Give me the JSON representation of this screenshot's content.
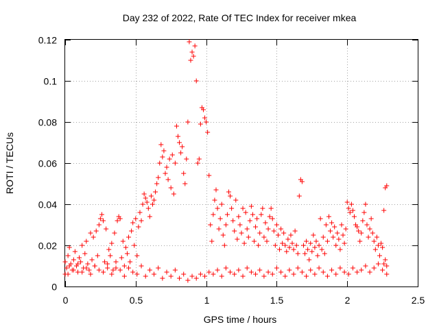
{
  "chart_data": {
    "type": "scatter",
    "title": "Day 232 of 2022, Rate Of TEC Index for receiver mkea",
    "xlabel": "GPS time / hours",
    "ylabel": "ROTI / TECUs",
    "xlim": [
      0,
      2.5
    ],
    "ylim": [
      0,
      0.12
    ],
    "xticks": [
      0,
      0.5,
      1,
      1.5,
      2,
      2.5
    ],
    "xtick_labels": [
      "0",
      "0.5",
      "1",
      "1.5",
      "2",
      "2.5"
    ],
    "yticks": [
      0,
      0.02,
      0.04,
      0.06,
      0.08,
      0.1,
      0.12
    ],
    "ytick_labels": [
      "0",
      "0.02",
      "0.04",
      "0.06",
      "0.08",
      "0.1",
      "0.12"
    ],
    "grid": true,
    "marker": "+",
    "color": "#ff0000",
    "series": [
      {
        "name": "mkea",
        "points": [
          [
            0.0,
            0.012
          ],
          [
            0.01,
            0.009
          ],
          [
            0.02,
            0.015
          ],
          [
            0.02,
            0.006
          ],
          [
            0.03,
            0.019
          ],
          [
            0.04,
            0.011
          ],
          [
            0.05,
            0.008
          ],
          [
            0.06,
            0.013
          ],
          [
            0.07,
            0.017
          ],
          [
            0.08,
            0.01
          ],
          [
            0.09,
            0.007
          ],
          [
            0.1,
            0.014
          ],
          [
            0.11,
            0.012
          ],
          [
            0.12,
            0.02
          ],
          [
            0.13,
            0.009
          ],
          [
            0.14,
            0.016
          ],
          [
            0.15,
            0.022
          ],
          [
            0.16,
            0.011
          ],
          [
            0.17,
            0.008
          ],
          [
            0.18,
            0.026
          ],
          [
            0.19,
            0.013
          ],
          [
            0.2,
            0.024
          ],
          [
            0.21,
            0.01
          ],
          [
            0.22,
            0.027
          ],
          [
            0.23,
            0.015
          ],
          [
            0.24,
            0.03
          ],
          [
            0.25,
            0.033
          ],
          [
            0.26,
            0.035
          ],
          [
            0.27,
            0.032
          ],
          [
            0.28,
            0.012
          ],
          [
            0.29,
            0.028
          ],
          [
            0.3,
            0.009
          ],
          [
            0.31,
            0.018
          ],
          [
            0.32,
            0.015
          ],
          [
            0.33,
            0.021
          ],
          [
            0.34,
            0.008
          ],
          [
            0.35,
            0.026
          ],
          [
            0.36,
            0.012
          ],
          [
            0.37,
            0.032
          ],
          [
            0.38,
            0.034
          ],
          [
            0.39,
            0.033
          ],
          [
            0.4,
            0.014
          ],
          [
            0.41,
            0.022
          ],
          [
            0.42,
            0.01
          ],
          [
            0.43,
            0.019
          ],
          [
            0.44,
            0.016
          ],
          [
            0.45,
            0.024
          ],
          [
            0.46,
            0.012
          ],
          [
            0.47,
            0.027
          ],
          [
            0.48,
            0.031
          ],
          [
            0.49,
            0.02
          ],
          [
            0.5,
            0.033
          ],
          [
            0.51,
            0.015
          ],
          [
            0.52,
            0.029
          ],
          [
            0.53,
            0.036
          ],
          [
            0.54,
            0.032
          ],
          [
            0.55,
            0.04
          ],
          [
            0.56,
            0.045
          ],
          [
            0.57,
            0.043
          ],
          [
            0.58,
            0.041
          ],
          [
            0.59,
            0.038
          ],
          [
            0.6,
            0.034
          ],
          [
            0.61,
            0.044
          ],
          [
            0.62,
            0.04
          ],
          [
            0.63,
            0.042
          ],
          [
            0.64,
            0.046
          ],
          [
            0.65,
            0.05
          ],
          [
            0.66,
            0.053
          ],
          [
            0.67,
            0.06
          ],
          [
            0.68,
            0.069
          ],
          [
            0.69,
            0.063
          ],
          [
            0.7,
            0.066
          ],
          [
            0.71,
            0.055
          ],
          [
            0.72,
            0.058
          ],
          [
            0.73,
            0.052
          ],
          [
            0.74,
            0.062
          ],
          [
            0.75,
            0.048
          ],
          [
            0.76,
            0.064
          ],
          [
            0.77,
            0.045
          ],
          [
            0.78,
            0.06
          ],
          [
            0.79,
            0.078
          ],
          [
            0.8,
            0.073
          ],
          [
            0.81,
            0.07
          ],
          [
            0.82,
            0.065
          ],
          [
            0.83,
            0.068
          ],
          [
            0.84,
            0.055
          ],
          [
            0.85,
            0.05
          ],
          [
            0.86,
            0.062
          ],
          [
            0.87,
            0.08
          ],
          [
            0.88,
            0.119
          ],
          [
            0.89,
            0.11
          ],
          [
            0.9,
            0.114
          ],
          [
            0.91,
            0.112
          ],
          [
            0.92,
            0.117
          ],
          [
            0.93,
            0.1
          ],
          [
            0.94,
            0.06
          ],
          [
            0.95,
            0.062
          ],
          [
            0.96,
            0.079
          ],
          [
            0.97,
            0.087
          ],
          [
            0.98,
            0.086
          ],
          [
            0.99,
            0.082
          ],
          [
            1.0,
            0.08
          ],
          [
            1.01,
            0.075
          ],
          [
            1.02,
            0.054
          ],
          [
            1.03,
            0.03
          ],
          [
            1.04,
            0.022
          ],
          [
            1.05,
            0.035
          ],
          [
            1.06,
            0.042
          ],
          [
            1.07,
            0.047
          ],
          [
            1.08,
            0.038
          ],
          [
            1.09,
            0.028
          ],
          [
            1.1,
            0.033
          ],
          [
            1.11,
            0.04
          ],
          [
            1.12,
            0.025
          ],
          [
            1.13,
            0.02
          ],
          [
            1.14,
            0.03
          ],
          [
            1.15,
            0.035
          ],
          [
            1.16,
            0.046
          ],
          [
            1.17,
            0.044
          ],
          [
            1.18,
            0.038
          ],
          [
            1.19,
            0.032
          ],
          [
            1.2,
            0.027
          ],
          [
            1.21,
            0.042
          ],
          [
            1.22,
            0.023
          ],
          [
            1.23,
            0.034
          ],
          [
            1.24,
            0.03
          ],
          [
            1.25,
            0.026
          ],
          [
            1.26,
            0.038
          ],
          [
            1.27,
            0.021
          ],
          [
            1.28,
            0.036
          ],
          [
            1.29,
            0.028
          ],
          [
            1.3,
            0.024
          ],
          [
            1.31,
            0.032
          ],
          [
            1.32,
            0.039
          ],
          [
            1.33,
            0.035
          ],
          [
            1.34,
            0.022
          ],
          [
            1.35,
            0.029
          ],
          [
            1.36,
            0.033
          ],
          [
            1.37,
            0.02
          ],
          [
            1.38,
            0.026
          ],
          [
            1.39,
            0.035
          ],
          [
            1.4,
            0.038
          ],
          [
            1.41,
            0.024
          ],
          [
            1.42,
            0.031
          ],
          [
            1.43,
            0.022
          ],
          [
            1.44,
            0.028
          ],
          [
            1.45,
            0.034
          ],
          [
            1.46,
            0.038
          ],
          [
            1.47,
            0.033
          ],
          [
            1.48,
            0.027
          ],
          [
            1.49,
            0.02
          ],
          [
            1.5,
            0.03
          ],
          [
            1.51,
            0.025
          ],
          [
            1.52,
            0.018
          ],
          [
            1.53,
            0.028
          ],
          [
            1.54,
            0.021
          ],
          [
            1.55,
            0.026
          ],
          [
            1.56,
            0.02
          ],
          [
            1.57,
            0.017
          ],
          [
            1.58,
            0.023
          ],
          [
            1.59,
            0.019
          ],
          [
            1.6,
            0.025
          ],
          [
            1.61,
            0.021
          ],
          [
            1.62,
            0.018
          ],
          [
            1.63,
            0.027
          ],
          [
            1.64,
            0.02
          ],
          [
            1.65,
            0.016
          ],
          [
            1.66,
            0.044
          ],
          [
            1.67,
            0.052
          ],
          [
            1.68,
            0.051
          ],
          [
            1.69,
            0.02
          ],
          [
            1.7,
            0.016
          ],
          [
            1.71,
            0.022
          ],
          [
            1.72,
            0.018
          ],
          [
            1.73,
            0.013
          ],
          [
            1.74,
            0.021
          ],
          [
            1.75,
            0.017
          ],
          [
            1.76,
            0.025
          ],
          [
            1.77,
            0.019
          ],
          [
            1.78,
            0.022
          ],
          [
            1.79,
            0.015
          ],
          [
            1.8,
            0.02
          ],
          [
            1.81,
            0.033
          ],
          [
            1.82,
            0.018
          ],
          [
            1.83,
            0.024
          ],
          [
            1.84,
            0.016
          ],
          [
            1.85,
            0.03
          ],
          [
            1.86,
            0.022
          ],
          [
            1.87,
            0.034
          ],
          [
            1.88,
            0.027
          ],
          [
            1.89,
            0.031
          ],
          [
            1.9,
            0.024
          ],
          [
            1.91,
            0.029
          ],
          [
            1.92,
            0.02
          ],
          [
            1.93,
            0.026
          ],
          [
            1.94,
            0.023
          ],
          [
            1.95,
            0.018
          ],
          [
            1.96,
            0.03
          ],
          [
            1.97,
            0.025
          ],
          [
            1.98,
            0.021
          ],
          [
            1.99,
            0.028
          ],
          [
            2.0,
            0.041
          ],
          [
            2.01,
            0.038
          ],
          [
            2.02,
            0.036
          ],
          [
            2.03,
            0.04
          ],
          [
            2.04,
            0.037
          ],
          [
            2.05,
            0.034
          ],
          [
            2.06,
            0.03
          ],
          [
            2.07,
            0.029
          ],
          [
            2.08,
            0.027
          ],
          [
            2.09,
            0.022
          ],
          [
            2.1,
            0.026
          ],
          [
            2.11,
            0.032
          ],
          [
            2.12,
            0.036
          ],
          [
            2.13,
            0.04
          ],
          [
            2.14,
            0.03
          ],
          [
            2.15,
            0.024
          ],
          [
            2.16,
            0.028
          ],
          [
            2.17,
            0.033
          ],
          [
            2.18,
            0.026
          ],
          [
            2.19,
            0.022
          ],
          [
            2.2,
            0.018
          ],
          [
            2.21,
            0.024
          ],
          [
            2.22,
            0.02
          ],
          [
            2.23,
            0.015
          ],
          [
            2.24,
            0.021
          ],
          [
            2.25,
            0.019
          ],
          [
            2.26,
            0.037
          ],
          [
            2.27,
            0.048
          ],
          [
            2.28,
            0.049
          ],
          [
            0.0,
            0.006
          ],
          [
            0.03,
            0.01
          ],
          [
            0.06,
            0.008
          ],
          [
            0.09,
            0.011
          ],
          [
            0.12,
            0.007
          ],
          [
            0.15,
            0.009
          ],
          [
            0.18,
            0.006
          ],
          [
            0.21,
            0.01
          ],
          [
            0.24,
            0.008
          ],
          [
            0.27,
            0.007
          ],
          [
            0.3,
            0.011
          ],
          [
            0.33,
            0.006
          ],
          [
            0.36,
            0.009
          ],
          [
            0.39,
            0.008
          ],
          [
            0.42,
            0.005
          ],
          [
            0.45,
            0.009
          ],
          [
            0.48,
            0.007
          ],
          [
            0.51,
            0.006
          ],
          [
            0.54,
            0.01
          ],
          [
            0.57,
            0.005
          ],
          [
            0.6,
            0.008
          ],
          [
            0.63,
            0.006
          ],
          [
            0.66,
            0.009
          ],
          [
            0.69,
            0.004
          ],
          [
            0.72,
            0.007
          ],
          [
            0.75,
            0.005
          ],
          [
            0.78,
            0.008
          ],
          [
            0.81,
            0.004
          ],
          [
            0.84,
            0.006
          ],
          [
            0.87,
            0.003
          ],
          [
            0.9,
            0.005
          ],
          [
            0.93,
            0.004
          ],
          [
            0.96,
            0.006
          ],
          [
            0.99,
            0.005
          ],
          [
            1.02,
            0.007
          ],
          [
            1.05,
            0.006
          ],
          [
            1.08,
            0.008
          ],
          [
            1.11,
            0.005
          ],
          [
            1.14,
            0.009
          ],
          [
            1.17,
            0.007
          ],
          [
            1.2,
            0.006
          ],
          [
            1.23,
            0.008
          ],
          [
            1.26,
            0.005
          ],
          [
            1.29,
            0.009
          ],
          [
            1.32,
            0.007
          ],
          [
            1.35,
            0.006
          ],
          [
            1.38,
            0.008
          ],
          [
            1.41,
            0.005
          ],
          [
            1.44,
            0.007
          ],
          [
            1.47,
            0.006
          ],
          [
            1.5,
            0.009
          ],
          [
            1.53,
            0.007
          ],
          [
            1.56,
            0.005
          ],
          [
            1.59,
            0.008
          ],
          [
            1.62,
            0.006
          ],
          [
            1.65,
            0.009
          ],
          [
            1.68,
            0.007
          ],
          [
            1.71,
            0.005
          ],
          [
            1.74,
            0.008
          ],
          [
            1.77,
            0.006
          ],
          [
            1.8,
            0.009
          ],
          [
            1.83,
            0.007
          ],
          [
            1.86,
            0.005
          ],
          [
            1.89,
            0.008
          ],
          [
            1.92,
            0.006
          ],
          [
            1.95,
            0.009
          ],
          [
            1.98,
            0.007
          ],
          [
            2.01,
            0.006
          ],
          [
            2.04,
            0.009
          ],
          [
            2.07,
            0.007
          ],
          [
            2.1,
            0.008
          ],
          [
            2.13,
            0.01
          ],
          [
            2.16,
            0.007
          ],
          [
            2.19,
            0.009
          ],
          [
            2.22,
            0.011
          ],
          [
            2.25,
            0.008
          ],
          [
            2.28,
            0.01
          ],
          [
            2.28,
            0.006
          ],
          [
            2.27,
            0.013
          ],
          [
            2.26,
            0.011
          ]
        ]
      }
    ]
  }
}
